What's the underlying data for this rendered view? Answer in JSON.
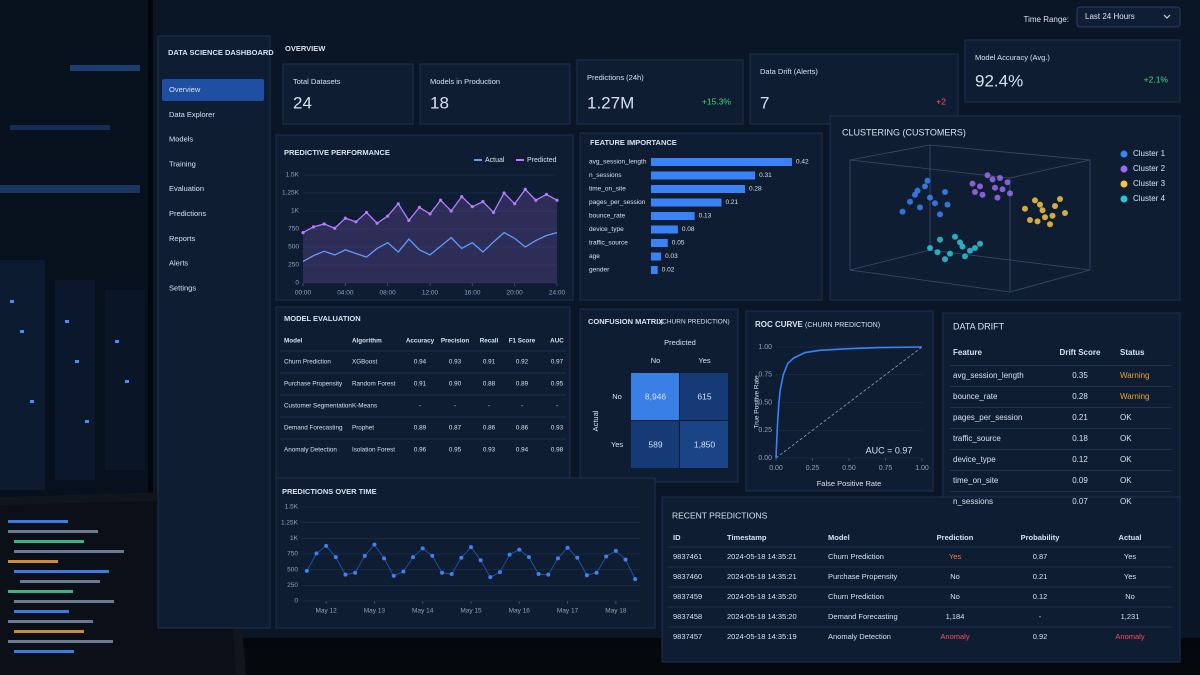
{
  "sidebar": {
    "title": "DATA SCIENCE DASHBOARD",
    "nav": [
      "Overview",
      "Data Explorer",
      "Models",
      "Training",
      "Evaluation",
      "Predictions",
      "Reports",
      "Alerts",
      "Settings"
    ]
  },
  "header": {
    "section": "OVERVIEW",
    "time_range_label": "Time Range:",
    "time_range": "Last 24 Hours"
  },
  "kpis": [
    {
      "label": "Total Datasets",
      "value": "24"
    },
    {
      "label": "Models in Production",
      "value": "18"
    },
    {
      "label": "Predictions (24h)",
      "value": "1.27M",
      "delta": "+15.3%",
      "delta_color": "#3ddc84"
    },
    {
      "label": "Data Drift (Alerts)",
      "value": "7",
      "delta": "+2",
      "delta_color": "#ff5a5a"
    },
    {
      "label": "Model Accuracy (Avg.)",
      "value": "92.4%",
      "delta": "+2.1%",
      "delta_color": "#3ddc84"
    }
  ],
  "predictive_performance": {
    "type": "line",
    "title": "PREDICTIVE PERFORMANCE",
    "x": [
      0,
      1,
      2,
      3,
      4,
      5,
      6,
      7,
      8,
      9,
      10,
      11,
      12,
      13,
      14,
      15,
      16,
      17,
      18,
      19,
      20,
      21,
      22,
      23,
      24
    ],
    "series": [
      {
        "name": "Actual",
        "color": "#4da3ff",
        "values": [
          300,
          380,
          440,
          390,
          460,
          410,
          360,
          480,
          560,
          430,
          610,
          460,
          390,
          510,
          630,
          480,
          560,
          430,
          570,
          700,
          620,
          500,
          590,
          660,
          700
        ]
      },
      {
        "name": "Predicted",
        "color": "#b77cff",
        "values": [
          700,
          780,
          820,
          760,
          900,
          850,
          980,
          830,
          930,
          1100,
          870,
          1050,
          960,
          1150,
          1000,
          1200,
          1060,
          1130,
          980,
          1250,
          1100,
          1300,
          1150,
          1230,
          1150
        ]
      }
    ],
    "xlim": [
      0,
      24
    ],
    "xticks": [
      {
        "value": 0,
        "label": "00:00"
      },
      {
        "value": 4,
        "label": "04:00"
      },
      {
        "value": 8,
        "label": "08:00"
      },
      {
        "value": 12,
        "label": "12:00"
      },
      {
        "value": 16,
        "label": "16:00"
      },
      {
        "value": 20,
        "label": "20:00"
      },
      {
        "value": 24,
        "label": "24:00"
      }
    ],
    "ylim": [
      0,
      1500
    ],
    "yticks": [
      0,
      250,
      500,
      750,
      {
        "value": 1000,
        "label": "1K"
      },
      {
        "value": 1250,
        "label": "1.25K"
      },
      {
        "value": 1500,
        "label": "1.5K"
      }
    ],
    "grid": true
  },
  "feature_importance": {
    "type": "bar",
    "orientation": "horizontal",
    "title": "FEATURE IMPORTANCE",
    "color": "#3b82f6",
    "categories": [
      "avg_session_length",
      "n_sessions",
      "time_on_site",
      "pages_per_session",
      "bounce_rate",
      "device_type",
      "traffic_source",
      "age",
      "gender"
    ],
    "values": [
      0.42,
      0.31,
      0.28,
      0.21,
      0.13,
      0.08,
      0.05,
      0.03,
      0.02
    ]
  },
  "clustering": {
    "type": "scatter",
    "title": "CLUSTERING (CUSTOMERS)",
    "xlim": [
      0,
      10
    ],
    "ylim": [
      0,
      10
    ],
    "series": [
      {
        "name": "Cluster 1",
        "color": "#3b82f6",
        "x": [
          2.1,
          2.6,
          3.0,
          3.4,
          3.8,
          2.8,
          3.2,
          3.6,
          2.4,
          3.9,
          3.1,
          2.7
        ],
        "values": [
          5.6,
          6.8,
          7.4,
          6.2,
          7.0,
          5.9,
          6.6,
          5.4,
          6.3,
          6.1,
          7.8,
          7.1
        ]
      },
      {
        "name": "Cluster 2",
        "color": "#9b6cf0",
        "x": [
          4.9,
          5.3,
          5.7,
          6.1,
          6.4,
          5.0,
          5.5,
          5.9,
          6.3,
          5.2,
          5.8,
          6.0
        ],
        "values": [
          7.6,
          6.8,
          7.9,
          7.2,
          6.9,
          7.0,
          8.2,
          6.6,
          7.7,
          7.4,
          7.3,
          8.0
        ]
      },
      {
        "name": "Cluster 3",
        "color": "#f5c542",
        "x": [
          7.0,
          7.4,
          7.8,
          8.2,
          8.6,
          7.2,
          7.6,
          8.0,
          8.4,
          7.7,
          8.1,
          7.5
        ],
        "values": [
          5.8,
          6.4,
          5.2,
          6.0,
          5.5,
          5.0,
          6.1,
          4.7,
          6.5,
          5.7,
          5.3,
          4.9
        ]
      },
      {
        "name": "Cluster 4",
        "color": "#2ec5d3",
        "x": [
          3.2,
          3.6,
          4.0,
          4.4,
          4.8,
          5.2,
          3.8,
          4.2,
          4.6,
          5.0,
          3.5,
          4.5
        ],
        "values": [
          3.0,
          3.6,
          2.6,
          3.4,
          2.8,
          3.3,
          2.2,
          3.8,
          2.4,
          3.0,
          2.7,
          3.1
        ]
      }
    ]
  },
  "model_evaluation": {
    "title": "MODEL EVALUATION",
    "columns": [
      "Model",
      "Algorithm",
      "Accuracy",
      "Precision",
      "Recall",
      "F1 Score",
      "AUC"
    ],
    "rows": [
      [
        "Churn Prediction",
        "XGBoost",
        "0.94",
        "0.93",
        "0.91",
        "0.92",
        "0.97"
      ],
      [
        "Purchase Propensity",
        "Random Forest",
        "0.91",
        "0.90",
        "0.88",
        "0.89",
        "0.95"
      ],
      [
        "Customer Segmentation",
        "K-Means",
        "-",
        "-",
        "-",
        "-",
        "-"
      ],
      [
        "Demand Forecasting",
        "Prophet",
        "0.89",
        "0.87",
        "0.86",
        "0.86",
        "0.93"
      ],
      [
        "Anomaly Detection",
        "Isolation Forest",
        "0.96",
        "0.95",
        "0.93",
        "0.94",
        "0.98"
      ]
    ]
  },
  "confusion_matrix": {
    "type": "heatmap",
    "title": "CONFUSION MATRIX",
    "subtitle": "(CHURN PREDICTION)",
    "x_label": "Predicted",
    "y_label": "Actual",
    "x_categories": [
      "No",
      "Yes"
    ],
    "y_categories": [
      "No",
      "Yes"
    ],
    "values": [
      [
        8946,
        615
      ],
      [
        589,
        1850
      ]
    ],
    "value_labels": [
      [
        "8,946",
        "615"
      ],
      [
        "589",
        "1,850"
      ]
    ],
    "color_low": "#163a75",
    "color_high": "#3a7fe6"
  },
  "roc_curve": {
    "type": "line",
    "title": "ROC CURVE",
    "subtitle": "(CHURN PREDICTION)",
    "x_label": "False Positive Rate",
    "y_label": "True Positive Rate",
    "color": "#3b82f6",
    "x": [
      0,
      0.01,
      0.02,
      0.03,
      0.05,
      0.08,
      0.12,
      0.2,
      0.3,
      0.5,
      0.7,
      1
    ],
    "values": [
      0,
      0.3,
      0.5,
      0.62,
      0.75,
      0.85,
      0.9,
      0.95,
      0.97,
      0.985,
      0.995,
      1
    ],
    "xlim": [
      0,
      1
    ],
    "ylim": [
      0,
      1
    ],
    "xticks": [
      {
        "value": 0,
        "label": "0.00"
      },
      {
        "value": 0.25,
        "label": "0.25"
      },
      {
        "value": 0.5,
        "label": "0.50"
      },
      {
        "value": 0.75,
        "label": "0.75"
      },
      {
        "value": 1,
        "label": "1.00"
      }
    ],
    "yticks": [
      {
        "value": 0,
        "label": "0.00"
      },
      {
        "value": 0.25,
        "label": "0.25"
      },
      {
        "value": 0.5,
        "label": "0.50"
      },
      {
        "value": 0.75,
        "label": "0.75"
      },
      {
        "value": 1,
        "label": "1.00"
      }
    ],
    "annotation": "AUC = 0.97"
  },
  "data_drift": {
    "title": "DATA DRIFT",
    "columns": [
      "Feature",
      "Drift Score",
      "Status"
    ],
    "rows": [
      [
        "avg_session_length",
        "0.35",
        {
          "text": "Warning",
          "color": "#f0a030"
        }
      ],
      [
        "bounce_rate",
        "0.28",
        {
          "text": "Warning",
          "color": "#f0a030"
        }
      ],
      [
        "pages_per_session",
        "0.21",
        "OK"
      ],
      [
        "traffic_source",
        "0.18",
        "OK"
      ],
      [
        "device_type",
        "0.12",
        "OK"
      ],
      [
        "time_on_site",
        "0.09",
        "OK"
      ],
      [
        "n_sessions",
        "0.07",
        "OK"
      ]
    ]
  },
  "predictions_over_time": {
    "type": "scatter",
    "title": "PREDICTIONS OVER TIME",
    "color": "#3b82f6",
    "x": [
      0.1,
      0.3,
      0.5,
      0.7,
      0.9,
      1.1,
      1.3,
      1.5,
      1.7,
      1.9,
      2.1,
      2.3,
      2.5,
      2.7,
      2.9,
      3.1,
      3.3,
      3.5,
      3.7,
      3.9,
      4.1,
      4.3,
      4.5,
      4.7,
      4.9,
      5.1,
      5.3,
      5.5,
      5.7,
      5.9,
      6.1,
      6.3,
      6.5,
      6.7,
      6.9
    ],
    "values": [
      480,
      760,
      880,
      700,
      420,
      450,
      720,
      900,
      680,
      400,
      470,
      700,
      840,
      720,
      450,
      430,
      690,
      860,
      650,
      380,
      460,
      740,
      820,
      700,
      430,
      420,
      680,
      850,
      690,
      410,
      450,
      710,
      800,
      660,
      350
    ],
    "xlim": [
      0,
      7
    ],
    "xticks": [
      {
        "value": 0.5,
        "label": "May 12"
      },
      {
        "value": 1.5,
        "label": "May 13"
      },
      {
        "value": 2.5,
        "label": "May 14"
      },
      {
        "value": 3.5,
        "label": "May 15"
      },
      {
        "value": 4.5,
        "label": "May 16"
      },
      {
        "value": 5.5,
        "label": "May 17"
      },
      {
        "value": 6.5,
        "label": "May 18"
      }
    ],
    "ylim": [
      0,
      1500
    ],
    "yticks": [
      0,
      250,
      500,
      750,
      {
        "value": 1000,
        "label": "1K"
      },
      {
        "value": 1250,
        "label": "1.25K"
      },
      {
        "value": 1500,
        "label": "1.5K"
      }
    ]
  },
  "recent_predictions": {
    "title": "RECENT PREDICTIONS",
    "columns": [
      "ID",
      "Timestamp",
      "Model",
      "Prediction",
      "Probability",
      "Actual"
    ],
    "rows": [
      [
        "9837461",
        "2024-05-18 14:35:21",
        "Churn Prediction",
        {
          "text": "Yes",
          "color": "#ff7a45"
        },
        "0.87",
        "Yes"
      ],
      [
        "9837460",
        "2024-05-18 14:35:21",
        "Purchase Propensity",
        "No",
        "0.21",
        "Yes"
      ],
      [
        "9837459",
        "2024-05-18 14:35:20",
        "Churn Prediction",
        "No",
        "0.12",
        "No"
      ],
      [
        "9837458",
        "2024-05-18 14:35:20",
        "Demand Forecasting",
        "1,184",
        "-",
        "1,231"
      ],
      [
        "9837457",
        "2024-05-18 14:35:19",
        "Anomaly Detection",
        {
          "text": "Anomaly",
          "color": "#ff4d4d"
        },
        "0.92",
        {
          "text": "Anomaly",
          "color": "#ff4d4d"
        }
      ]
    ]
  }
}
